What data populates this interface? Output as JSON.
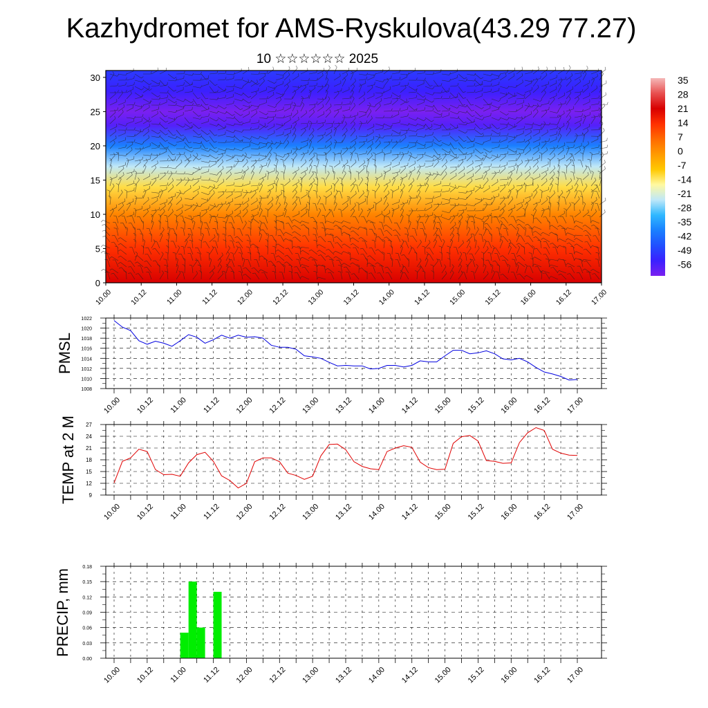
{
  "header": {
    "title": "Kazhydromet for AMS-Ryskulova(43.29 77.27)",
    "subtitle": "10 ☆☆☆☆☆☆ 2025"
  },
  "x_ticks": [
    "10.00",
    "10.12",
    "11.00",
    "11.12",
    "12.00",
    "12.12",
    "13.00",
    "13.12",
    "14.00",
    "14.12",
    "15.00",
    "15.12",
    "16.00",
    "16.12",
    "17.00"
  ],
  "colors": {
    "pmsl_line": "#0000e0",
    "temp_line": "#e00000",
    "precip_bar": "#00ee00"
  },
  "chart_data": [
    {
      "id": "upper-air",
      "type": "heatmap",
      "title": "",
      "xlabel": "",
      "ylabel": "",
      "xlim": [
        0,
        168
      ],
      "ylim": [
        0,
        31
      ],
      "y_ticks": [
        "0",
        "5",
        "10",
        "15",
        "20",
        "25",
        "30"
      ],
      "colorbar": {
        "labels": [
          "35",
          "28",
          "21",
          "14",
          "7",
          "0",
          "-7",
          "-14",
          "-21",
          "-28",
          "-35",
          "-42",
          "-49",
          "-56"
        ],
        "colors": [
          "#f5b8b8",
          "#e85050",
          "#d80000",
          "#ff3000",
          "#ff6a00",
          "#ff9a00",
          "#ffc800",
          "#fff9a0",
          "#bfe8f8",
          "#30b8ff",
          "#1a80ff",
          "#2050ff",
          "#3a20ff",
          "#7a20f0"
        ]
      },
      "temperature_profile": [
        {
          "level": 0,
          "value": 21
        },
        {
          "level": 5,
          "value": 14
        },
        {
          "level": 10,
          "value": 3
        },
        {
          "level": 14,
          "value": -10
        },
        {
          "level": 17,
          "value": -21
        },
        {
          "level": 20,
          "value": -35
        },
        {
          "level": 23,
          "value": -52
        },
        {
          "level": 25,
          "value": -56
        },
        {
          "level": 28,
          "value": -49
        },
        {
          "level": 31,
          "value": -45
        }
      ],
      "wind_barbs": "wind barbs at every grid point"
    },
    {
      "id": "pmsl",
      "type": "line",
      "title": "",
      "xlabel": "",
      "ylabel": "PMSL",
      "xlim": [
        0,
        168
      ],
      "ylim": [
        1008,
        1022
      ],
      "y_ticks": [
        "1008",
        "1010",
        "1012",
        "1014",
        "1016",
        "1018",
        "1020",
        "1022"
      ],
      "series": [
        {
          "name": "",
          "x": [
            0,
            3,
            6,
            9,
            12,
            15,
            18,
            21,
            24,
            27,
            30,
            33,
            36,
            39,
            42,
            45,
            48,
            51,
            54,
            57,
            60,
            63,
            66,
            69,
            72,
            75,
            78,
            81,
            84,
            87,
            90,
            93,
            96,
            99,
            102,
            105,
            108,
            111,
            114,
            117,
            120,
            123,
            126,
            129,
            132,
            135,
            138,
            141,
            144,
            147,
            150,
            153,
            156,
            159,
            162,
            165,
            168
          ],
          "y": [
            1021.5,
            1020.2,
            1019.5,
            1017.5,
            1016.8,
            1017.4,
            1017.0,
            1016.4,
            1017.5,
            1018.7,
            1018.2,
            1017.0,
            1017.7,
            1018.6,
            1018.0,
            1018.6,
            1018.2,
            1018.3,
            1018.0,
            1016.6,
            1016.2,
            1016.2,
            1015.8,
            1014.5,
            1014.3,
            1014.0,
            1013.2,
            1012.5,
            1012.6,
            1012.5,
            1012.5,
            1011.9,
            1012.0,
            1012.6,
            1012.6,
            1012.3,
            1012.6,
            1013.5,
            1013.3,
            1013.3,
            1014.5,
            1015.6,
            1015.6,
            1014.9,
            1015.1,
            1015.5,
            1014.9,
            1013.9,
            1013.7,
            1014.0,
            1013.3,
            1012.2,
            1011.3,
            1010.9,
            1010.4,
            1009.7,
            1009.8
          ]
        }
      ]
    },
    {
      "id": "temp2m",
      "type": "line",
      "title": "",
      "xlabel": "",
      "ylabel": "TEMP at 2 M",
      "xlim": [
        0,
        168
      ],
      "ylim": [
        9,
        27
      ],
      "y_ticks": [
        "9",
        "12",
        "15",
        "18",
        "21",
        "24",
        "27"
      ],
      "series": [
        {
          "name": "",
          "x": [
            0,
            3,
            6,
            9,
            12,
            15,
            18,
            21,
            24,
            27,
            30,
            33,
            36,
            39,
            42,
            45,
            48,
            51,
            54,
            57,
            60,
            63,
            66,
            69,
            72,
            75,
            78,
            81,
            84,
            87,
            90,
            93,
            96,
            99,
            102,
            105,
            108,
            111,
            114,
            117,
            120,
            123,
            126,
            129,
            132,
            135,
            138,
            141,
            144,
            147,
            150,
            153,
            156,
            159,
            162,
            165,
            168
          ],
          "y": [
            12.1,
            17.6,
            18.5,
            20.7,
            20.1,
            15.5,
            14.2,
            14.3,
            13.8,
            17.2,
            19.3,
            19.9,
            17.6,
            13.9,
            12.7,
            10.8,
            12.0,
            17.5,
            18.5,
            18.5,
            17.5,
            14.6,
            14.0,
            13.0,
            13.8,
            19.0,
            21.9,
            22.0,
            20.6,
            17.5,
            16.3,
            15.7,
            15.5,
            20.1,
            21.0,
            21.6,
            21.2,
            17.4,
            16.0,
            15.5,
            15.6,
            22.2,
            23.9,
            24.2,
            22.8,
            17.8,
            17.6,
            17.1,
            17.2,
            22.4,
            24.9,
            26.2,
            25.5,
            20.7,
            19.7,
            19.2,
            19.1
          ]
        }
      ]
    },
    {
      "id": "precip",
      "type": "bar",
      "title": "",
      "xlabel": "",
      "ylabel": "PRECIP, mm",
      "xlim": [
        0,
        168
      ],
      "ylim": [
        0,
        0.18
      ],
      "y_ticks": [
        "0.00",
        "0.03",
        "0.06",
        "0.09",
        "0.12",
        "0.15",
        "0.18"
      ],
      "bars": [
        {
          "x_start": 24,
          "x_end": 27,
          "value": 0.05
        },
        {
          "x_start": 27,
          "x_end": 30,
          "value": 0.15
        },
        {
          "x_start": 30,
          "x_end": 33,
          "value": 0.06
        },
        {
          "x_start": 36,
          "x_end": 39,
          "value": 0.13
        }
      ]
    }
  ]
}
